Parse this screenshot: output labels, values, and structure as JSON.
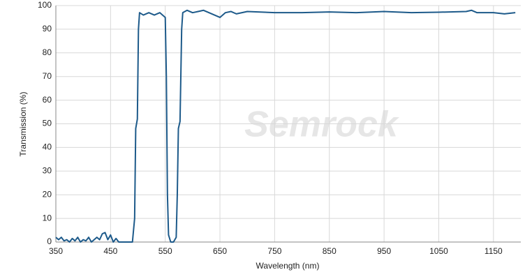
{
  "chart_data": {
    "type": "line",
    "x_label": "Wavelength (nm)",
    "y_label": "Transmission (%)",
    "watermark": "Semrock",
    "xlim": [
      350,
      1200
    ],
    "ylim": [
      0,
      100
    ],
    "xticks": [
      350,
      450,
      550,
      650,
      750,
      850,
      950,
      1050,
      1150
    ],
    "yticks": [
      0,
      10,
      20,
      30,
      40,
      50,
      60,
      70,
      80,
      90,
      100
    ],
    "grid": true,
    "series": [
      {
        "color": "#1d5a8a",
        "x": [
          350,
          355,
          360,
          365,
          370,
          375,
          380,
          385,
          390,
          395,
          400,
          405,
          410,
          415,
          420,
          425,
          430,
          435,
          440,
          445,
          450,
          455,
          460,
          465,
          470,
          480,
          490,
          494,
          496,
          499,
          501,
          503,
          510,
          520,
          530,
          540,
          550,
          552,
          554,
          556,
          560,
          565,
          570,
          572,
          574,
          577,
          580,
          582,
          590,
          600,
          610,
          620,
          630,
          640,
          650,
          660,
          670,
          680,
          700,
          750,
          800,
          850,
          900,
          950,
          1000,
          1050,
          1100,
          1110,
          1120,
          1150,
          1170,
          1190
        ],
        "values": [
          2,
          1,
          2,
          0.5,
          1,
          0,
          1.5,
          0.5,
          2,
          0,
          1,
          0.5,
          2,
          0,
          1,
          2,
          1,
          3.5,
          4,
          1,
          3,
          0,
          1.5,
          0,
          0,
          0,
          0,
          10,
          48,
          52,
          90,
          97,
          96,
          97,
          96,
          97,
          95,
          70,
          20,
          3,
          0,
          0,
          2,
          20,
          48,
          51,
          90,
          97,
          98,
          97,
          97.5,
          98,
          97,
          96,
          95,
          97,
          97.5,
          96.5,
          97.5,
          97,
          97,
          97.3,
          97,
          97.5,
          97,
          97.2,
          97.5,
          98,
          97,
          97,
          96.5,
          97
        ]
      }
    ]
  }
}
